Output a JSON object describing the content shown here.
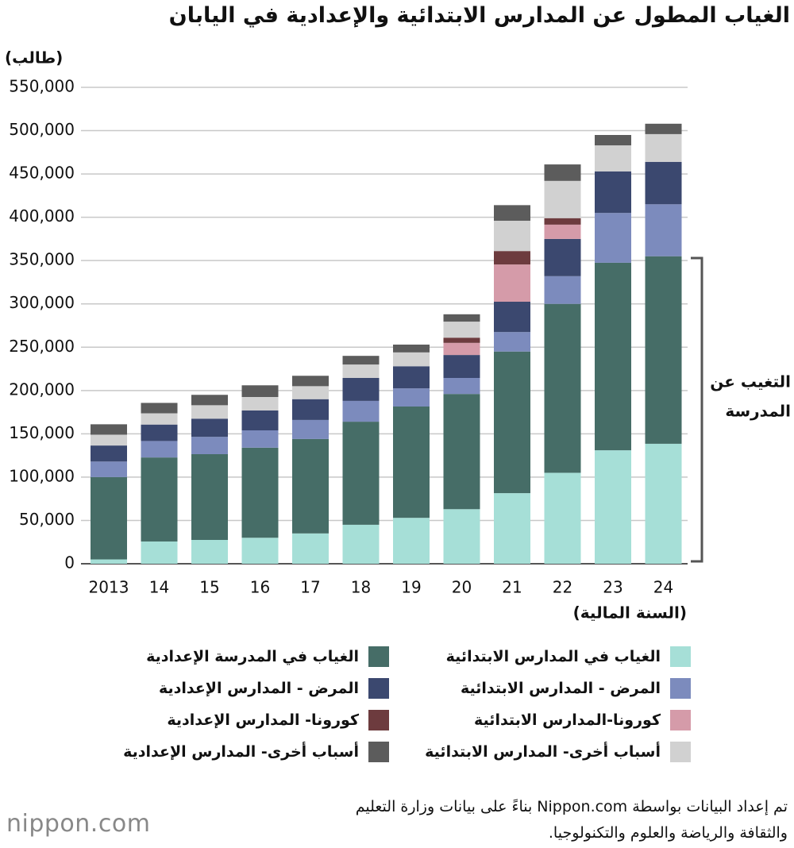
{
  "chart_data": {
    "type": "bar",
    "stacked": true,
    "title": "الغياب المطول عن المدارس الابتدائية والإعدادية في اليابان",
    "y_label": "(طالب)",
    "x_label": "(السنة المالية)",
    "annotation": [
      "التغيب عن",
      "المدرسة"
    ],
    "categories": [
      "2013",
      "14",
      "15",
      "16",
      "17",
      "18",
      "19",
      "20",
      "21",
      "22",
      "23",
      "24"
    ],
    "series": [
      {
        "name": "الغياب في المدارس الابتدائية",
        "color": "#a6dfd7",
        "values": [
          5000,
          25700,
          27500,
          30000,
          35000,
          45000,
          53000,
          63000,
          81500,
          105000,
          131000,
          138500
        ]
      },
      {
        "name": "الغياب في المدرسة الإعدادية",
        "color": "#466d67",
        "values": [
          95000,
          97000,
          99000,
          104000,
          109000,
          119000,
          128500,
          133000,
          163500,
          195000,
          216500,
          216500
        ]
      },
      {
        "name": "المرض - المدارس الابتدائية",
        "color": "#7c8bbd",
        "values": [
          18000,
          19000,
          20000,
          20000,
          22000,
          24000,
          21000,
          18500,
          22500,
          32000,
          57500,
          60000
        ]
      },
      {
        "name": "المرض - المدارس الإعدادية",
        "color": "#3b486f",
        "values": [
          18500,
          19000,
          21000,
          23000,
          24000,
          26500,
          25500,
          26500,
          35000,
          43000,
          48000,
          49000
        ]
      },
      {
        "name": "كورونا-المدارس الابتدائية",
        "color": "#d59ba9",
        "values": [
          null,
          null,
          null,
          null,
          null,
          null,
          null,
          14000,
          43000,
          16500,
          null,
          null
        ]
      },
      {
        "name": "كورونا- المدارس الإعدادية",
        "color": "#6d3b3e",
        "values": [
          null,
          null,
          null,
          null,
          null,
          null,
          null,
          6000,
          15500,
          7500,
          null,
          null
        ]
      },
      {
        "name": "أسباب أخرى- المدارس الابتدائية",
        "color": "#d1d1d1",
        "values": [
          12500,
          13000,
          15500,
          15500,
          15000,
          15500,
          16000,
          18500,
          35000,
          43000,
          30000,
          32000
        ]
      },
      {
        "name": "أسباب أخرى- المدارس الإعدادية",
        "color": "#5c5c5c",
        "values": [
          12000,
          12000,
          12000,
          13500,
          12000,
          10000,
          9000,
          8500,
          18000,
          19000,
          12000,
          12000
        ]
      }
    ],
    "ylim": [
      0,
      550000
    ],
    "yticks": [
      0,
      {
        "value": 50000,
        "label": "50,000"
      },
      {
        "value": 100000,
        "label": "100,000"
      },
      {
        "value": 150000,
        "label": "150,000"
      },
      {
        "value": 200000,
        "label": "200,000"
      },
      {
        "value": 250000,
        "label": "250,000"
      },
      {
        "value": 300000,
        "label": "300,000"
      },
      {
        "value": 350000,
        "label": "350,000"
      },
      {
        "value": 400000,
        "label": "400,000"
      },
      {
        "value": 450000,
        "label": "450,000"
      },
      {
        "value": 500000,
        "label": "500,000"
      },
      {
        "value": 550000,
        "label": "550,000"
      }
    ],
    "grid": true
  },
  "source": [
    "تم إعداد البيانات بواسطة Nippon.com بناءً على بيانات وزارة التعليم",
    "والثقافة والرياضة والعلوم والتكنولوجيا."
  ],
  "brand": "nippon.com"
}
